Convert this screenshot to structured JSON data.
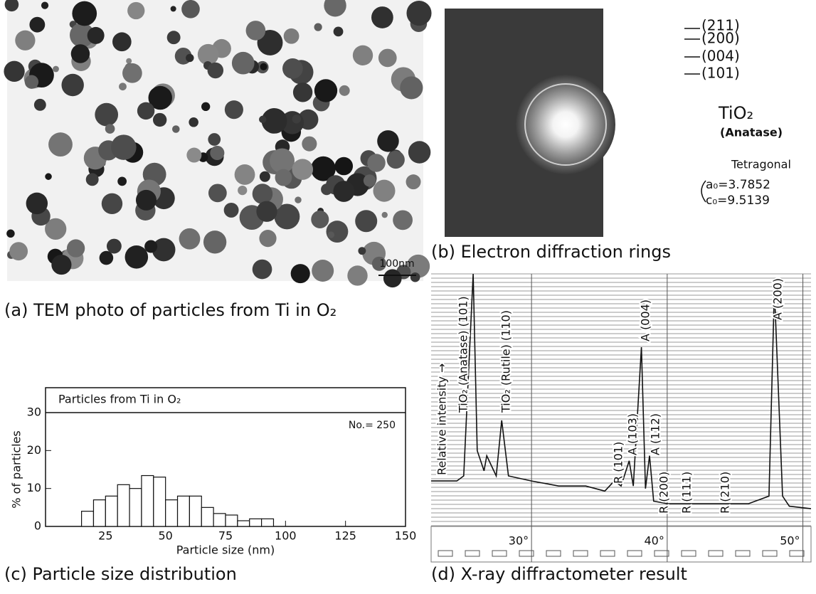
{
  "figure": {
    "panel_a": {
      "scale_bar": "100nm",
      "caption": "(a) TEM photo of particles from Ti in O₂"
    },
    "panel_b": {
      "ring_labels": [
        "(211)",
        "(200)",
        "(004)",
        "(101)"
      ],
      "material": "TiO₂",
      "phase": "(Anatase)",
      "system": "Tetragonal",
      "lattice": [
        "a₀=3.7852",
        "c₀=9.5139"
      ],
      "caption": "(b) Electron diffraction rings"
    }
  },
  "chart_data": [
    {
      "type": "histogram",
      "title": "Particles from Ti in O₂",
      "annotation": "No.= 250",
      "x_label": "Particle size (nm)",
      "y_label": "% of particles",
      "bins": [
        15,
        20,
        25,
        30,
        35,
        40,
        45,
        50,
        55,
        60,
        65,
        70,
        75,
        80,
        85,
        90,
        95
      ],
      "values": [
        4,
        7,
        8,
        11,
        10,
        13.4,
        13,
        7,
        8,
        8,
        5,
        3.4,
        3,
        1.5,
        2,
        2
      ],
      "xlim": [
        0,
        150
      ],
      "ylim": [
        0,
        30
      ],
      "xticks": [
        25,
        50,
        75,
        100,
        125,
        150
      ],
      "yticks": [
        0,
        10,
        20,
        30
      ],
      "caption": "(c) Particle size distribution"
    },
    {
      "type": "line",
      "y_label": "Relative intensity →",
      "x": [
        22.6,
        24.5,
        25.0,
        25.7,
        26.0,
        26.5,
        26.7,
        27.4,
        27.8,
        28.3,
        30,
        32,
        34,
        35.4,
        36.1,
        36.6,
        37.2,
        37.5,
        38.1,
        38.4,
        38.7,
        39.0,
        40,
        42,
        44,
        46,
        47.5,
        47.9,
        48.5,
        49,
        50.6
      ],
      "values": [
        18,
        18,
        20,
        100,
        30,
        22,
        28,
        20,
        42,
        20,
        18,
        16,
        16,
        14,
        18,
        16,
        26,
        16,
        71,
        15,
        28,
        10,
        9,
        9,
        9,
        9,
        12,
        94,
        12,
        8,
        7
      ],
      "xlim": [
        22.6,
        50.6
      ],
      "ylim": [
        0,
        100
      ],
      "xticks": [
        {
          "value": 30,
          "label": "30°"
        },
        {
          "value": 40,
          "label": "40°"
        },
        {
          "value": 50,
          "label": "50°"
        }
      ],
      "annotations": [
        "TiO₂ (Anatase) (101)",
        "TiO₂ (Rutile) (110)",
        "R (101)",
        "A (103)",
        "A (004)",
        "A (112)",
        "R (200)",
        "R (111)",
        "R (210)",
        "A (200)"
      ],
      "color": "#111111",
      "caption": "(d) X-ray diffractometer result"
    }
  ]
}
